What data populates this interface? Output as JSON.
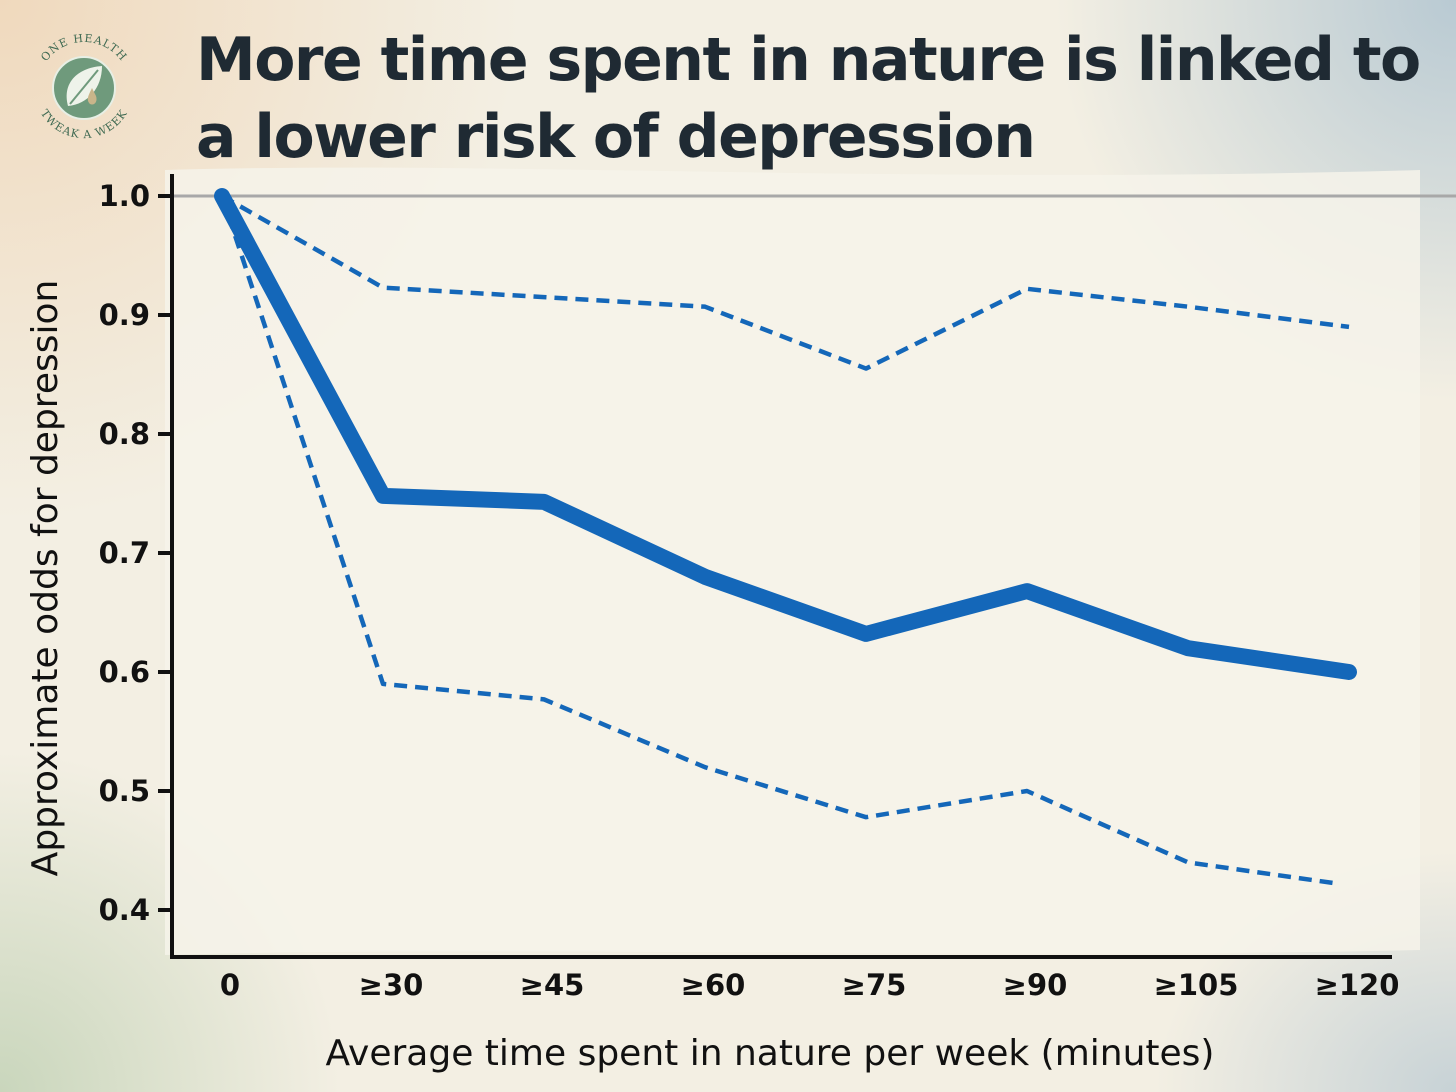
{
  "logo": {
    "top_text": "ONE HEALTH",
    "bottom_text": "TWEAK A WEEK",
    "icon": "leaf-droplet-icon"
  },
  "chart_data": {
    "type": "line",
    "title": "More time spent in nature is linked to a lower risk of depression",
    "xlabel": "Average time spent in nature per week (minutes)",
    "ylabel": "Approximate odds for depression",
    "categories": [
      "0",
      "≥30",
      "≥45",
      "≥60",
      "≥75",
      "≥90",
      "≥105",
      "≥120"
    ],
    "ylim": [
      0.4,
      1.0
    ],
    "yticks": [
      "1.0",
      "0.9",
      "0.8",
      "0.7",
      "0.6",
      "0.5",
      "0.4"
    ],
    "reference_line": 1.0,
    "series": [
      {
        "role": "estimate",
        "style": "solid",
        "values": [
          1.0,
          0.748,
          0.743,
          0.68,
          0.632,
          0.668,
          0.62,
          0.6
        ]
      },
      {
        "role": "upper-bound",
        "style": "dashed",
        "values": [
          1.0,
          0.923,
          0.915,
          0.907,
          0.855,
          0.922,
          0.907,
          0.89
        ]
      },
      {
        "role": "lower-bound",
        "style": "dashed",
        "values": [
          1.0,
          0.59,
          0.577,
          0.52,
          0.478,
          0.5,
          0.44,
          0.422
        ]
      }
    ],
    "colors": {
      "line": "#1467b9",
      "axis": "#111111",
      "reference": "#a8a8a8",
      "title": "#1f2a33"
    },
    "grid": false,
    "legend": "none"
  }
}
